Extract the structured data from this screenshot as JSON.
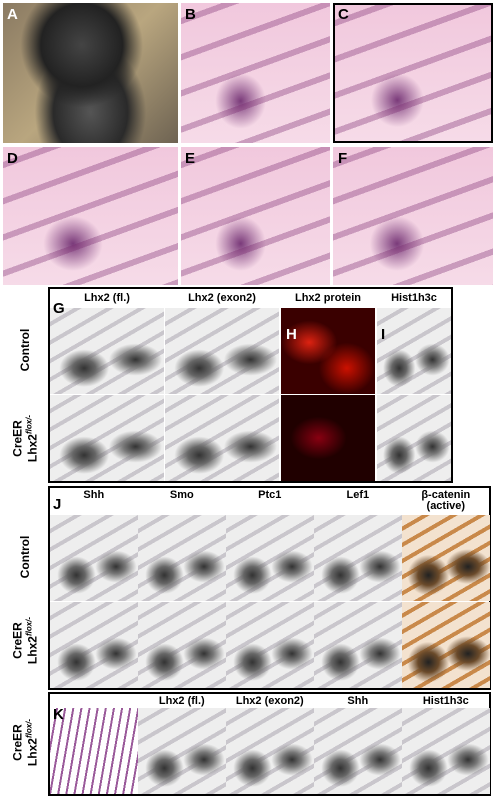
{
  "panel_labels": [
    "A",
    "B",
    "C",
    "D",
    "E",
    "F",
    "G",
    "H",
    "I",
    "J",
    "K"
  ],
  "g_headers": [
    "Lhx2 (fl.)",
    "Lhx2 (exon2)",
    "Lhx2 protein",
    "Hist1h3c"
  ],
  "j_headers": [
    "Shh",
    "Smo",
    "Ptc1",
    "Lef1",
    "β-catenin (active)"
  ],
  "k_headers": [
    "Lhx2 (fl.)",
    "Lhx2 (exon2)",
    "Shh",
    "Hist1h3c"
  ],
  "row_labels": {
    "control": "Control",
    "mutant_line1": "CreER",
    "mutant_gene": "Lhx2",
    "mutant_sup": "flox/-"
  }
}
